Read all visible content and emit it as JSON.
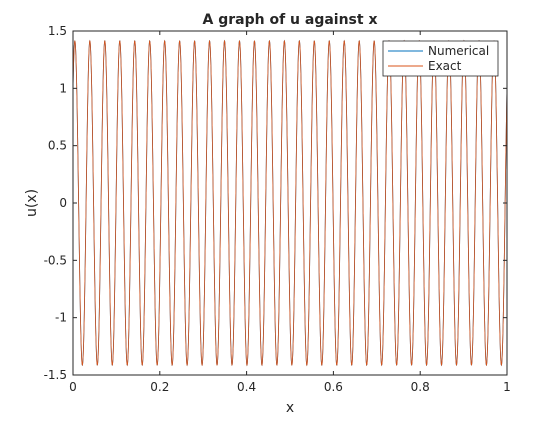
{
  "chart_data": {
    "type": "line",
    "title": "A graph of u against x",
    "xlabel": "x",
    "ylabel": "u(x)",
    "xlim": [
      0,
      1
    ],
    "ylim": [
      -1.5,
      1.5
    ],
    "x_ticks": [
      0,
      0.2,
      0.4,
      0.6,
      0.8,
      1
    ],
    "x_tick_labels": [
      "0",
      "0.2",
      "0.4",
      "0.6",
      "0.8",
      "1"
    ],
    "y_ticks": [
      1.5,
      1,
      0.5,
      0,
      -0.5,
      -1,
      -1.5
    ],
    "y_tick_labels": [
      "1.5",
      "1",
      "0.5",
      "0",
      "-0.5",
      "-1",
      "-1.5"
    ],
    "grid": false,
    "legend_position": "top-right",
    "series": [
      {
        "name": "Numerical",
        "color": "#0072BD",
        "function": "u(x) = sqrt(2) * cos(2*pi*29*x - pi/4)",
        "amplitude": 1.414,
        "cycles_over_domain": 29
      },
      {
        "name": "Exact",
        "color": "#D95319",
        "function": "u(x) = sqrt(2) * cos(2*pi*29*x - pi/4)",
        "amplitude": 1.414,
        "cycles_over_domain": 29
      }
    ]
  }
}
